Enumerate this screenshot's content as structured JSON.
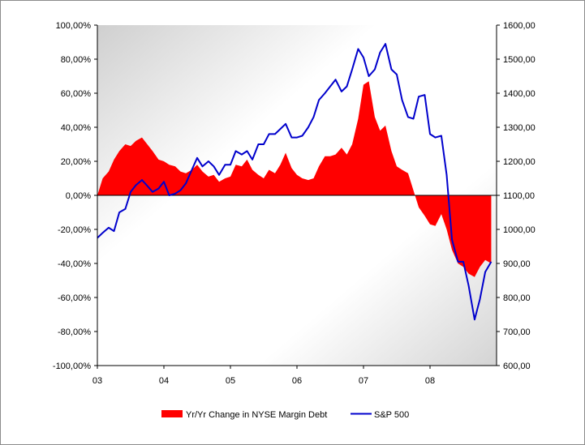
{
  "chart_data": {
    "type": "area+line",
    "x": [
      2003.0,
      2003.08,
      2003.17,
      2003.25,
      2003.33,
      2003.42,
      2003.5,
      2003.58,
      2003.67,
      2003.75,
      2003.83,
      2003.92,
      2004.0,
      2004.08,
      2004.17,
      2004.25,
      2004.33,
      2004.42,
      2004.5,
      2004.58,
      2004.67,
      2004.75,
      2004.83,
      2004.92,
      2005.0,
      2005.08,
      2005.17,
      2005.25,
      2005.33,
      2005.42,
      2005.5,
      2005.58,
      2005.67,
      2005.75,
      2005.83,
      2005.92,
      2006.0,
      2006.08,
      2006.17,
      2006.25,
      2006.33,
      2006.42,
      2006.5,
      2006.58,
      2006.67,
      2006.75,
      2006.83,
      2006.92,
      2007.0,
      2007.08,
      2007.17,
      2007.25,
      2007.33,
      2007.42,
      2007.5,
      2007.58,
      2007.67,
      2007.75,
      2007.83,
      2007.92,
      2008.0,
      2008.08,
      2008.17,
      2008.25,
      2008.33,
      2008.42,
      2008.5,
      2008.58,
      2008.67,
      2008.75,
      2008.83,
      2008.92
    ],
    "series": [
      {
        "name": "Yr/Yr Change in NYSE Margin Debt",
        "axis": "left",
        "style": "area",
        "color": "#ff0000",
        "values": [
          0,
          10,
          14,
          21,
          26,
          30,
          29,
          32,
          34,
          30,
          26,
          21,
          20,
          18,
          17,
          14,
          13,
          15,
          18,
          14,
          11,
          12,
          8,
          10,
          11,
          18,
          17,
          21,
          15,
          12,
          10,
          15,
          13,
          18,
          25,
          16,
          12,
          10,
          9,
          10,
          17,
          23,
          23,
          24,
          28,
          24,
          30,
          45,
          65,
          67,
          46,
          38,
          41,
          26,
          17,
          15,
          13,
          3,
          -7,
          -12,
          -17,
          -18,
          -11,
          -20,
          -32,
          -40,
          -42,
          -46,
          -48,
          -42,
          -38,
          -40
        ]
      },
      {
        "name": "S&P 500",
        "axis": "right",
        "style": "line",
        "color": "#0000cc",
        "values": [
          975,
          990,
          1005,
          995,
          1050,
          1060,
          1110,
          1130,
          1145,
          1128,
          1110,
          1120,
          1140,
          1100,
          1105,
          1115,
          1135,
          1175,
          1210,
          1185,
          1200,
          1185,
          1160,
          1190,
          1190,
          1230,
          1220,
          1230,
          1205,
          1250,
          1250,
          1280,
          1280,
          1295,
          1310,
          1270,
          1270,
          1275,
          1300,
          1330,
          1380,
          1400,
          1420,
          1440,
          1405,
          1420,
          1470,
          1530,
          1505,
          1450,
          1470,
          1520,
          1545,
          1470,
          1455,
          1380,
          1330,
          1325,
          1390,
          1395,
          1280,
          1270,
          1275,
          1160,
          970,
          905,
          905,
          835,
          735,
          795,
          875,
          905
        ]
      }
    ],
    "x_ticks": [
      "03",
      "04",
      "05",
      "06",
      "07",
      "08"
    ],
    "y_left": {
      "min": -100,
      "max": 100,
      "step": 20,
      "tick_labels": [
        "-100,00%",
        "-80,00%",
        "-60,00%",
        "-40,00%",
        "-20,00%",
        "0,00%",
        "20,00%",
        "40,00%",
        "60,00%",
        "80,00%",
        "100,00%"
      ]
    },
    "y_right": {
      "min": 600,
      "max": 1600,
      "step": 100,
      "tick_labels": [
        "600,00",
        "700,00",
        "800,00",
        "900,00",
        "1000,00",
        "1100,00",
        "1200,00",
        "1300,00",
        "1400,00",
        "1500,00",
        "1600,00"
      ]
    },
    "xlim": [
      2003,
      2009
    ],
    "grid": false,
    "legend_position": "bottom-center",
    "plot_background": "gray-gradient"
  },
  "legend": {
    "area_label": "Yr/Yr Change in NYSE Margin Debt",
    "line_label": "S&P 500"
  }
}
